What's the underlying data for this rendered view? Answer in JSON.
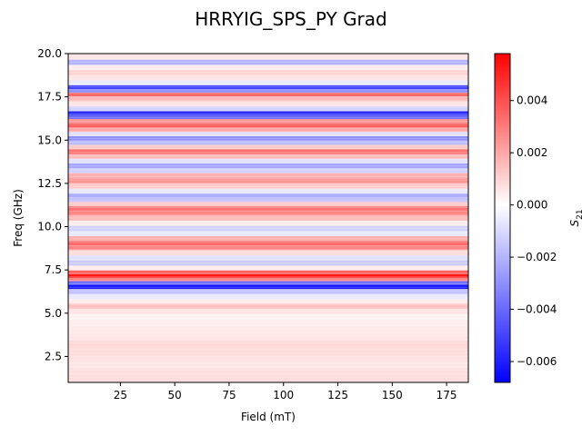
{
  "chart_data": {
    "type": "heatmap",
    "title": "HRRYIG_SPS_PY Grad",
    "xlabel": "Field (mT)",
    "ylabel": "Freq (GHz)",
    "colorbar_label": "S21",
    "colorbar_label_main": "S",
    "colorbar_label_sub": "21",
    "xlim": [
      1,
      185
    ],
    "ylim": [
      1,
      20
    ],
    "x_ticks": [
      25,
      50,
      75,
      100,
      125,
      150,
      175
    ],
    "x_tick_labels": [
      "25",
      "50",
      "75",
      "100",
      "125",
      "150",
      "175"
    ],
    "y_ticks": [
      2.5,
      5.0,
      7.5,
      10.0,
      12.5,
      15.0,
      17.5,
      20.0
    ],
    "y_tick_labels": [
      "2.5",
      "5.0",
      "7.5",
      "10.0",
      "12.5",
      "15.0",
      "17.5",
      "20.0"
    ],
    "colorbar_range": [
      -0.0068,
      0.0058
    ],
    "colorbar_ticks": [
      0.004,
      0.002,
      0.0,
      -0.002,
      -0.004,
      -0.006
    ],
    "colorbar_tick_labels": [
      "0.004",
      "0.002",
      "0.000",
      "−0.002",
      "−0.004",
      "−0.006"
    ],
    "colormap": "bwr",
    "colors": {
      "negative": "#0000ff",
      "zero": "#ffffff",
      "positive": "#ff0000"
    },
    "bands": [
      {
        "freq": 1.2,
        "value": 0.0008
      },
      {
        "freq": 1.6,
        "value": 0.0007
      },
      {
        "freq": 2.0,
        "value": 0.0006
      },
      {
        "freq": 2.4,
        "value": 0.0007
      },
      {
        "freq": 2.8,
        "value": 0.0008
      },
      {
        "freq": 3.2,
        "value": 0.0009
      },
      {
        "freq": 3.6,
        "value": 0.0006
      },
      {
        "freq": 4.0,
        "value": 0.0005
      },
      {
        "freq": 4.4,
        "value": 0.0004
      },
      {
        "freq": 4.8,
        "value": 0.0003
      },
      {
        "freq": 5.1,
        "value": 0.0006
      },
      {
        "freq": 5.4,
        "value": 0.0014
      },
      {
        "freq": 5.7,
        "value": 0.0004
      },
      {
        "freq": 5.95,
        "value": -0.0006
      },
      {
        "freq": 6.25,
        "value": -0.0016
      },
      {
        "freq": 6.55,
        "value": -0.0062
      },
      {
        "freq": 6.75,
        "value": -0.0038
      },
      {
        "freq": 6.95,
        "value": 0.0028
      },
      {
        "freq": 7.15,
        "value": 0.0052
      },
      {
        "freq": 7.35,
        "value": 0.0036
      },
      {
        "freq": 7.6,
        "value": 0.0004
      },
      {
        "freq": 7.9,
        "value": -0.0014
      },
      {
        "freq": 8.2,
        "value": -0.0008
      },
      {
        "freq": 8.5,
        "value": 0.0008
      },
      {
        "freq": 8.8,
        "value": 0.0028
      },
      {
        "freq": 9.05,
        "value": 0.0034
      },
      {
        "freq": 9.3,
        "value": 0.0018
      },
      {
        "freq": 9.6,
        "value": -0.0006
      },
      {
        "freq": 9.9,
        "value": -0.0012
      },
      {
        "freq": 10.2,
        "value": 0.0004
      },
      {
        "freq": 10.5,
        "value": 0.0016
      },
      {
        "freq": 10.8,
        "value": 0.0028
      },
      {
        "freq": 11.05,
        "value": 0.0032
      },
      {
        "freq": 11.3,
        "value": 0.0012
      },
      {
        "freq": 11.55,
        "value": -0.0016
      },
      {
        "freq": 11.8,
        "value": -0.0022
      },
      {
        "freq": 12.05,
        "value": -0.0006
      },
      {
        "freq": 12.35,
        "value": 0.0012
      },
      {
        "freq": 12.65,
        "value": 0.0024
      },
      {
        "freq": 12.95,
        "value": 0.0018
      },
      {
        "freq": 13.25,
        "value": -0.0012
      },
      {
        "freq": 13.5,
        "value": -0.0024
      },
      {
        "freq": 13.8,
        "value": -0.0008
      },
      {
        "freq": 14.05,
        "value": 0.0016
      },
      {
        "freq": 14.35,
        "value": 0.0032
      },
      {
        "freq": 14.6,
        "value": 0.0012
      },
      {
        "freq": 14.85,
        "value": -0.0018
      },
      {
        "freq": 15.1,
        "value": -0.003
      },
      {
        "freq": 15.35,
        "value": -0.0008
      },
      {
        "freq": 15.6,
        "value": 0.002
      },
      {
        "freq": 15.85,
        "value": 0.0036
      },
      {
        "freq": 16.1,
        "value": 0.0024
      },
      {
        "freq": 16.35,
        "value": -0.004
      },
      {
        "freq": 16.55,
        "value": -0.0056
      },
      {
        "freq": 16.8,
        "value": -0.0012
      },
      {
        "freq": 17.1,
        "value": 0.0006
      },
      {
        "freq": 17.4,
        "value": 0.0016
      },
      {
        "freq": 17.65,
        "value": 0.0034
      },
      {
        "freq": 17.85,
        "value": -0.003
      },
      {
        "freq": 18.05,
        "value": -0.005
      },
      {
        "freq": 18.3,
        "value": -0.0006
      },
      {
        "freq": 18.6,
        "value": 0.0006
      },
      {
        "freq": 18.9,
        "value": 0.001
      },
      {
        "freq": 19.2,
        "value": 0.0004
      },
      {
        "freq": 19.5,
        "value": -0.002
      },
      {
        "freq": 19.8,
        "value": 0.0006
      }
    ]
  }
}
